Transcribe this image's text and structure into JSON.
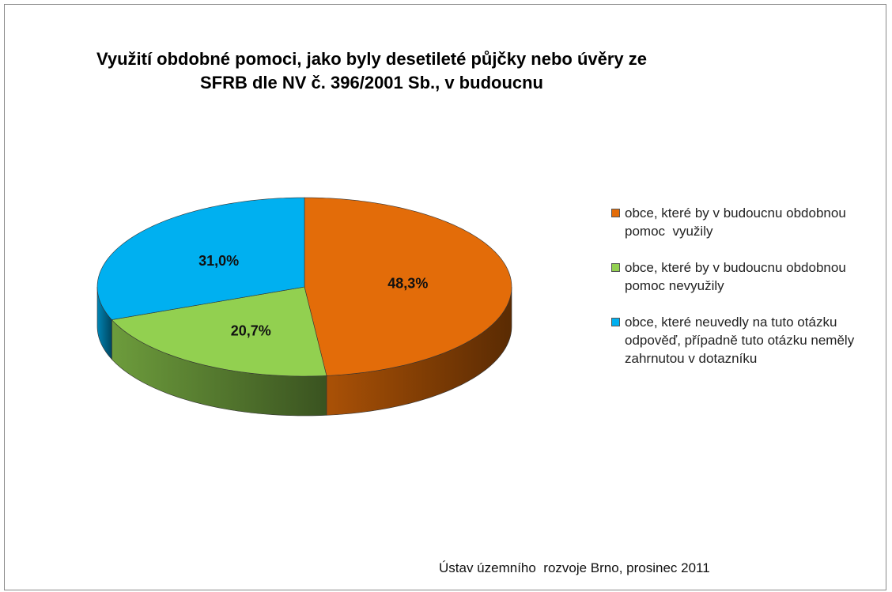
{
  "chart_data": {
    "type": "pie",
    "title": "Využití obdobné pomoci, jako byly desetileté půjčky nebo úvěry ze SFRB dle NV č. 396/2001 Sb., v budoucnu",
    "categories": [
      "obce, které by v budoucnu obdobnou pomoc  využily",
      "obce, které by v budoucnu obdobnou pomoc nevyužily",
      "obce, které neuvedly na tuto otázku odpověď, případně tuto otázku neměly zahrnutou v dotazníku"
    ],
    "values": [
      48.3,
      20.7,
      31.0
    ],
    "value_labels": [
      "48,3%",
      "20,7%",
      "31,0%"
    ],
    "colors": [
      "#e36c09",
      "#92d050",
      "#00b0f0"
    ],
    "legend": "right",
    "annotation": "Ústav územního  rozvoje Brno, prosinec 2011"
  }
}
